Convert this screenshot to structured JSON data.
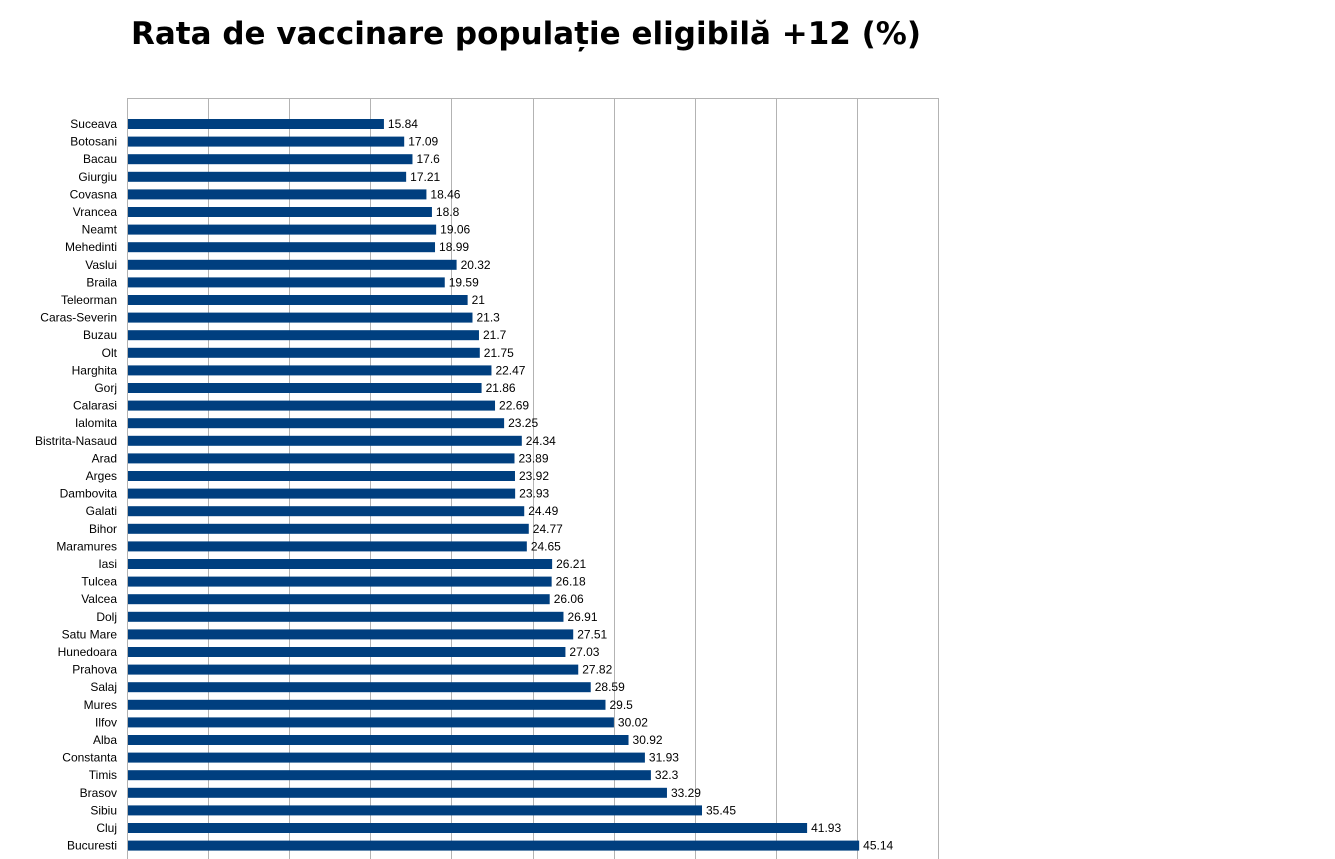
{
  "chart_data": {
    "type": "bar",
    "orientation": "horizontal",
    "title": "Rata de vaccinare populație eligibilă +12 (%)",
    "xlabel": "",
    "ylabel": "",
    "xlim": [
      0,
      50
    ],
    "grid": true,
    "grid_step": 5,
    "legend": "none",
    "bar_color": "#003f7f",
    "grid_color": "#b3b3b3",
    "categories": [
      "Suceava",
      "Botosani",
      "Bacau",
      "Giurgiu",
      "Covasna",
      "Vrancea",
      "Neamt",
      "Mehedinti",
      "Vaslui",
      "Braila",
      "Teleorman",
      "Caras-Severin",
      "Buzau",
      "Olt",
      "Harghita",
      "Gorj",
      "Calarasi",
      "Ialomita",
      "Bistrita-Nasaud",
      "Arad",
      "Arges",
      "Dambovita",
      "Galati",
      "Bihor",
      "Maramures",
      "Iasi",
      "Tulcea",
      "Valcea",
      "Dolj",
      "Satu Mare",
      "Hunedoara",
      "Prahova",
      "Salaj",
      "Mures",
      "Ilfov",
      "Alba",
      "Constanta",
      "Timis",
      "Brasov",
      "Sibiu",
      "Cluj",
      "Bucuresti"
    ],
    "values": [
      15.84,
      17.09,
      17.6,
      17.21,
      18.46,
      18.8,
      19.06,
      18.99,
      20.32,
      19.59,
      21,
      21.3,
      21.7,
      21.75,
      22.47,
      21.86,
      22.69,
      23.25,
      24.34,
      23.89,
      23.92,
      23.93,
      24.49,
      24.77,
      24.65,
      26.21,
      26.18,
      26.06,
      26.91,
      27.51,
      27.03,
      27.82,
      28.59,
      29.5,
      30.02,
      30.92,
      31.93,
      32.3,
      33.29,
      35.45,
      41.93,
      45.14
    ]
  }
}
